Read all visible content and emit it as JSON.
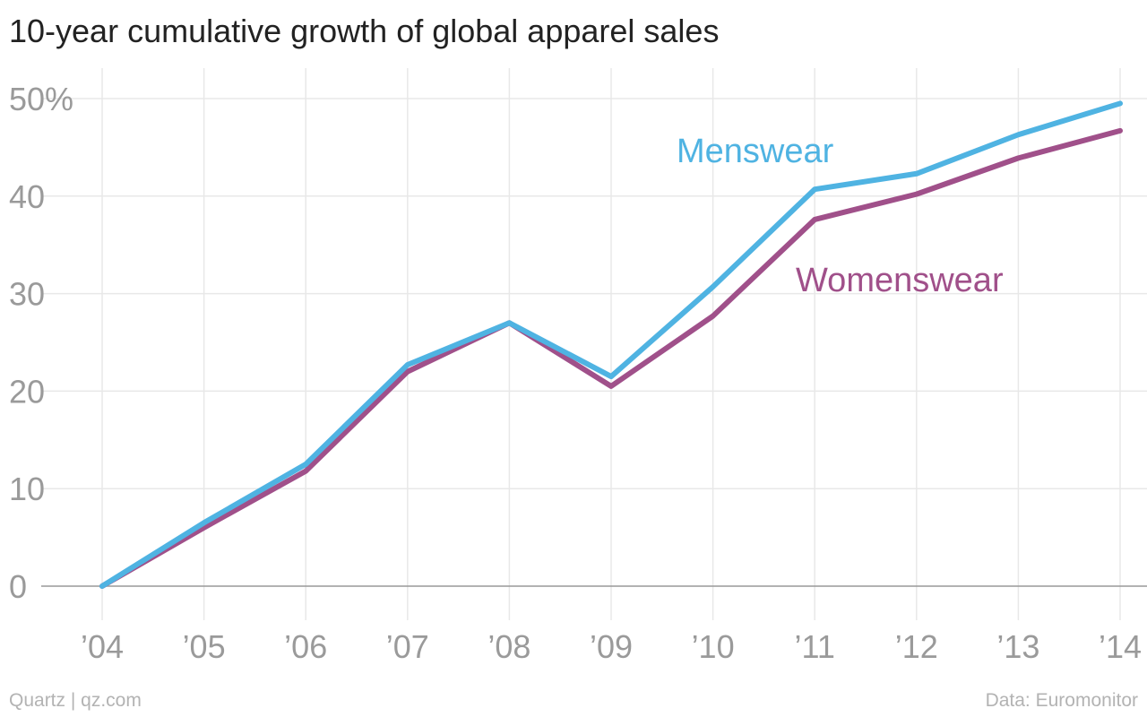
{
  "title": "10-year cumulative growth of global apparel sales",
  "footer": {
    "source_left": "Quartz | qz.com",
    "source_right": "Data: Euromonitor"
  },
  "colors": {
    "menswear": "#4fb3e2",
    "womenswear": "#a0508a",
    "grid": "#e8e8e8",
    "baseline": "#999999",
    "tick_text": "#9a9a9a"
  },
  "chart_data": {
    "type": "line",
    "title": "10-year cumulative growth of global apparel sales",
    "xlabel": "",
    "ylabel": "",
    "x": [
      "’04",
      "’05",
      "’06",
      "’07",
      "’08",
      "’09",
      "’10",
      "’11",
      "’12",
      "’13",
      "’14"
    ],
    "y_ticks": [
      "50%",
      "40",
      "30",
      "20",
      "10",
      "0"
    ],
    "y_tick_values": [
      50,
      40,
      30,
      20,
      10,
      0
    ],
    "ylim": [
      0,
      50
    ],
    "grid": true,
    "series": [
      {
        "name": "Menswear",
        "color": "#4fb3e2",
        "values": [
          0,
          6.5,
          12.5,
          22.7,
          27,
          21.5,
          30.7,
          40.7,
          42.3,
          46.3,
          49.5
        ]
      },
      {
        "name": "Womenswear",
        "color": "#a0508a",
        "values": [
          0,
          6.0,
          11.8,
          22.0,
          27,
          20.5,
          27.7,
          37.6,
          40.2,
          43.9,
          46.7
        ]
      }
    ]
  }
}
